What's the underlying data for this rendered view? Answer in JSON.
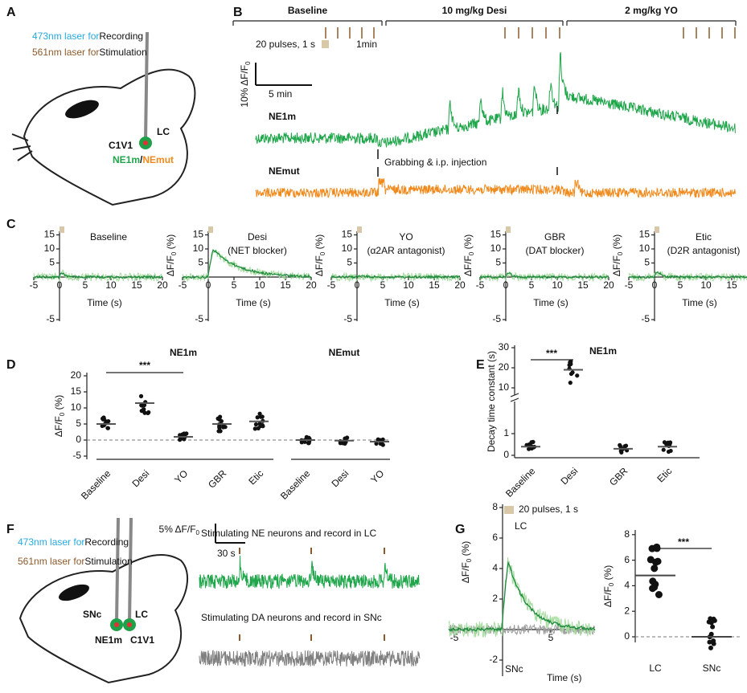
{
  "A": {
    "label": "A",
    "rec_laser": "473nm laser for",
    "rec_use": "Recording",
    "stim_laser": "561nm laser for",
    "stim_use": "Stimulation",
    "opsin": "C1V1",
    "site": "LC",
    "sensor": "NE1m",
    "sep": "/",
    "mutant": "NEmut"
  },
  "B": {
    "label": "B",
    "phases": [
      "Baseline",
      "10 mg/kg Desi",
      "2 mg/kg YO"
    ],
    "pulses": "20 pulses, 1 s",
    "interval": "1min",
    "scale_y": "10% ΔF/F",
    "scale_y_sub": "0",
    "scale_x": "5 min",
    "sensor": "NE1m",
    "mutant": "NEmut",
    "annotation": "Grabbing & i.p. injection"
  },
  "C": {
    "label": "C",
    "y_label": "ΔF/F",
    "y_label_sub": "0",
    "y_unit": " (%)",
    "x_label": "Time (s)",
    "yticks": [
      "-5",
      "5",
      "10",
      "15"
    ],
    "xticks": [
      "-5",
      "0",
      "5",
      "10",
      "15",
      "20"
    ],
    "plots": [
      {
        "title": "Baseline"
      },
      {
        "title": "Desi",
        "subtitle": "(NET blocker)"
      },
      {
        "title": "YO",
        "subtitle": "(α2AR antagonist)"
      },
      {
        "title": "GBR",
        "subtitle": "(DAT blocker)"
      },
      {
        "title": "Etic",
        "subtitle": "(D2R antagonist)"
      }
    ]
  },
  "D": {
    "label": "D",
    "groups": [
      "NE1m",
      "NEmut"
    ],
    "y_label": "ΔF/F",
    "y_label_sub": "0",
    "y_unit": " (%)",
    "yticks": [
      "20",
      "15",
      "10",
      "5",
      "0",
      "-5"
    ],
    "categories": [
      "Baseline",
      "Desi",
      "YO",
      "GBR",
      "Etic",
      "Baseline",
      "Desi",
      "YO"
    ],
    "means": [
      5,
      11.5,
      1,
      5,
      5.8,
      0,
      -0.2,
      -0.5
    ],
    "significance": "***"
  },
  "E": {
    "label": "E",
    "title": "NE1m",
    "y_label": "Decay time constant (s)",
    "yticks_upper": [
      "30",
      "20",
      "10"
    ],
    "yticks_lower": [
      "1",
      "0"
    ],
    "categories": [
      "Baseline",
      "Desi",
      "GBR",
      "Etic"
    ],
    "means": [
      0.4,
      19,
      0.3,
      0.4
    ],
    "significance": "***"
  },
  "F": {
    "label": "F",
    "rec_laser": "473nm laser for",
    "rec_use": "Recording",
    "stim_laser": "561nm laser for",
    "stim_use": "Stimulation",
    "site1": "SNc",
    "site2": "LC",
    "sensor": "NE1m",
    "opsin": "C1V1",
    "scale_y": "5% ΔF/F",
    "scale_y_sub": "0",
    "scale_x": "30 s",
    "trace1": "Stimulating NE neurons and record in LC",
    "trace2": "Stimulating DA neurons and record in SNc"
  },
  "G": {
    "label": "G",
    "pulses": "20 pulses, 1 s",
    "trace1": "LC",
    "trace2": "SNc",
    "y_label": "ΔF/F",
    "y_label_sub": "0",
    "y_unit": " (%)",
    "yticks": [
      "8",
      "6",
      "4",
      "2",
      "-2"
    ],
    "xticks": [
      "-5",
      "5"
    ],
    "x_label": "Time (s)",
    "bar_yticks": [
      "0",
      "2",
      "4",
      "6",
      "8"
    ],
    "categories": [
      "LC",
      "SNc"
    ],
    "means": [
      4.8,
      0
    ],
    "significance": "***"
  }
}
